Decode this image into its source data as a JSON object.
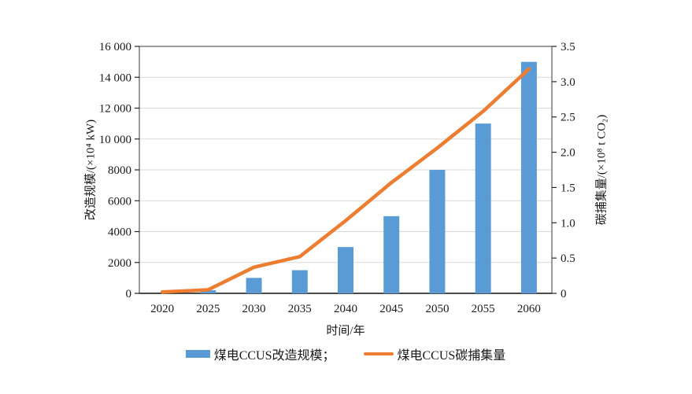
{
  "page": {
    "background": "#ffffff"
  },
  "chart_data": {
    "type": "combo-bar-line",
    "categories": [
      "2020",
      "2025",
      "2030",
      "2035",
      "2040",
      "2045",
      "2050",
      "2055",
      "2060"
    ],
    "series": [
      {
        "name": "煤电CCUS改造规模",
        "type": "bar",
        "axis": "left",
        "color": "#5B9BD5",
        "values": [
          0,
          200,
          1000,
          1500,
          3000,
          5000,
          8000,
          11000,
          15000
        ]
      },
      {
        "name": "煤电CCUS碳捕集量",
        "type": "line",
        "axis": "right",
        "color": "#ED7D31",
        "values": [
          0.02,
          0.05,
          0.37,
          0.52,
          1.03,
          1.57,
          2.06,
          2.58,
          3.18
        ]
      }
    ],
    "left_axis": {
      "title": "改造规模/(×10⁴ kW)",
      "min": 0,
      "max": 16000,
      "tick_step": 2000,
      "tick_labels": [
        "0",
        "2000",
        "4000",
        "6000",
        "8000",
        "10 000",
        "12 000",
        "14 000",
        "16 000"
      ]
    },
    "right_axis": {
      "title": "碳捕集量/(×10⁸ t CO₂)",
      "min": 0,
      "max": 3.5,
      "tick_step": 0.5,
      "tick_labels": [
        "0",
        "0.5",
        "1.0",
        "1.5",
        "2.0",
        "2.5",
        "3.0",
        "3.5"
      ]
    },
    "x_axis": {
      "title": "时间/年"
    },
    "grid": "horizontal",
    "legend_position": "bottom",
    "legend": [
      {
        "label": "煤电CCUS改造规模；",
        "swatch": "bar",
        "color": "#5B9BD5"
      },
      {
        "label": "煤电CCUS碳捕集量",
        "swatch": "line",
        "color": "#ED7D31"
      }
    ]
  },
  "style": {
    "grid_color": "#d9d9d9",
    "frame_color": "#595959",
    "axis_color": "#262626",
    "tick_color": "#262626",
    "text_color": "#1a1a1a"
  }
}
